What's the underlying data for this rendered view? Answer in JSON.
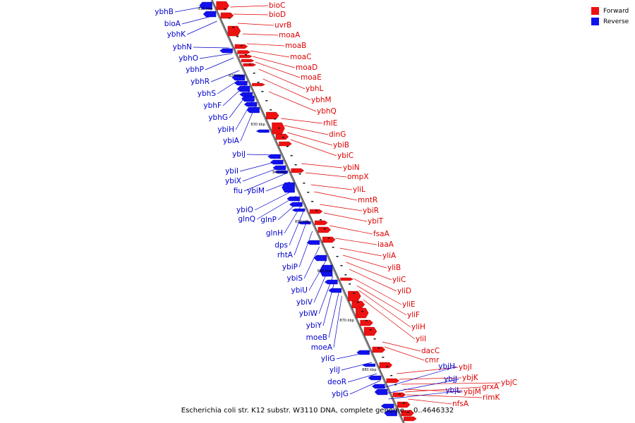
{
  "caption": "Escherichia coli str. K12 substr. W3110 DNA, complete genome. - 0..4646332",
  "legend": {
    "forward_label": "Forward",
    "reverse_label": "Reverse",
    "forward_color": "#ee1111",
    "reverse_color": "#1111ee"
  },
  "axis_ticks": [
    "810 kbp",
    "820 kbp",
    "830 kbp",
    "840 kbp",
    "850 kbp",
    "860 kbp",
    "870 kbp",
    "880 kbp"
  ],
  "forward_genes": [
    "bioC",
    "bioD",
    "uvrB",
    "moaA",
    "moaB",
    "moaC",
    "moaD",
    "moaE",
    "ybhL",
    "ybhM",
    "ybhQ",
    "rhlE",
    "dinG",
    "ybiB",
    "ybiC",
    "ybiN",
    "ompX",
    "yliL",
    "mntR",
    "ybiR",
    "ybiT",
    "fsaA",
    "iaaA",
    "yliA",
    "yliB",
    "yliC",
    "yliD",
    "yliE",
    "yliF",
    "yliH",
    "yliI",
    "dacC",
    "cmr",
    "ybjI",
    "ybjK",
    "ybjC",
    "ybjM",
    "grxA",
    "rimK",
    "nfsA"
  ],
  "reverse_genes": [
    "ybhB",
    "bioA",
    "ybhK",
    "ybhN",
    "ybhO",
    "ybhP",
    "ybhR",
    "ybhS",
    "ybhF",
    "ybhG",
    "ybiH",
    "ybiA",
    "ybiJ",
    "ybiI",
    "ybiX",
    "fiu",
    "ybiM",
    "ybiO",
    "glnQ",
    "glnP",
    "glnH",
    "dps",
    "rhtA",
    "ybiP",
    "ybiS",
    "ybiU",
    "ybiV",
    "ybiW",
    "ybiY",
    "moeB",
    "moeA",
    "yliG",
    "yliJ",
    "deoR",
    "ybjG",
    "ybjH",
    "ybjJ",
    "ybjL"
  ]
}
